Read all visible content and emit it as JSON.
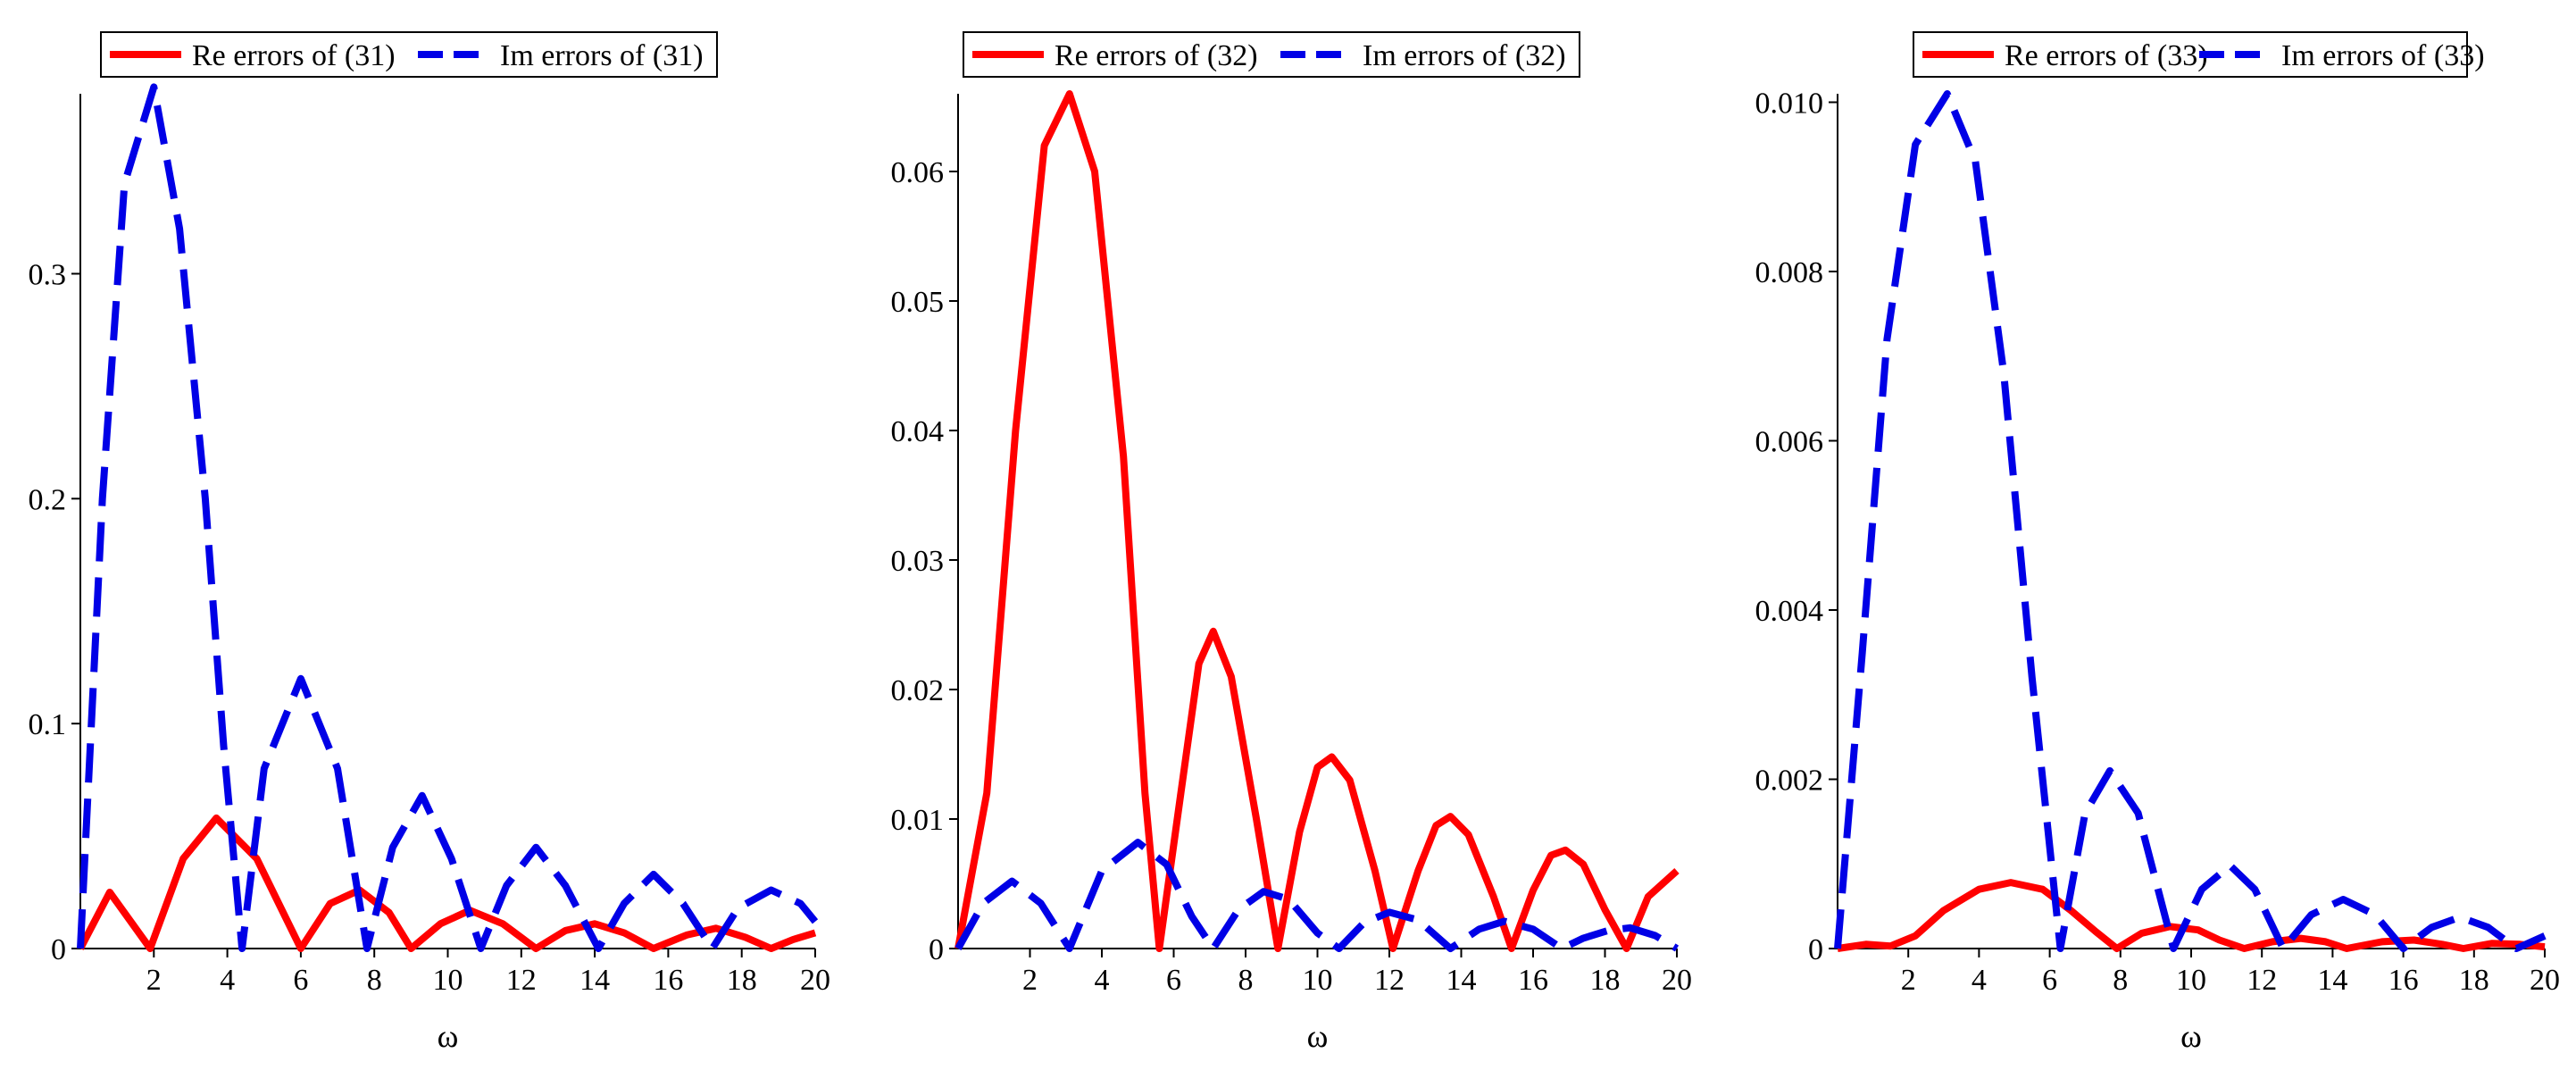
{
  "colors": {
    "re": "#ff0000",
    "im": "#0000e6",
    "axis": "#000000"
  },
  "chart_data": [
    {
      "type": "line",
      "title": "",
      "xlabel": "ω",
      "ylabel": "",
      "xlim": [
        0,
        20
      ],
      "ylim": [
        0,
        0.38
      ],
      "xticks": [
        2,
        4,
        6,
        8,
        10,
        12,
        14,
        16,
        18,
        20
      ],
      "xtick_labels": [
        "2",
        "4",
        "6",
        "8",
        "10",
        "12",
        "14",
        "16",
        "18",
        "20"
      ],
      "yticks": [
        0,
        0.1,
        0.2,
        0.3
      ],
      "ytick_labels": [
        "0",
        "0.1",
        "0.2",
        "0.3"
      ],
      "legend": [
        "Re errors of (31)",
        "Im errors of (31)"
      ],
      "legend_position": "top-center",
      "series": [
        {
          "name": "Re errors of (31)",
          "style": "solid",
          "x": [
            0,
            0.8,
            1.9,
            2.8,
            3.7,
            4.8,
            6.0,
            6.8,
            7.6,
            8.4,
            9.0,
            9.8,
            10.6,
            11.5,
            12.4,
            13.2,
            14.0,
            14.8,
            15.6,
            16.5,
            17.3,
            18.1,
            18.8,
            19.4,
            20.0
          ],
          "y": [
            0,
            0.025,
            0,
            0.04,
            0.058,
            0.04,
            0,
            0.02,
            0.026,
            0.016,
            0,
            0.011,
            0.017,
            0.011,
            0,
            0.008,
            0.011,
            0.007,
            0,
            0.006,
            0.009,
            0.005,
            0,
            0.004,
            0.007
          ]
        },
        {
          "name": "Im errors of (31)",
          "style": "dashed",
          "x": [
            0,
            0.6,
            1.2,
            2.0,
            2.7,
            3.4,
            3.9,
            4.4,
            5.0,
            6.0,
            7.0,
            7.8,
            8.5,
            9.3,
            10.1,
            10.9,
            11.6,
            12.4,
            13.2,
            14.1,
            14.8,
            15.6,
            16.4,
            17.2,
            17.9,
            18.8,
            19.6,
            20.0
          ],
          "y": [
            0,
            0.2,
            0.34,
            0.383,
            0.32,
            0.2,
            0.09,
            0,
            0.08,
            0.12,
            0.08,
            0,
            0.045,
            0.068,
            0.04,
            0,
            0.028,
            0.045,
            0.028,
            0,
            0.02,
            0.033,
            0.02,
            0,
            0.018,
            0.026,
            0.02,
            0.012
          ]
        }
      ]
    },
    {
      "type": "line",
      "title": "",
      "xlabel": "ω",
      "ylabel": "",
      "xlim": [
        0,
        20
      ],
      "ylim": [
        0,
        0.066
      ],
      "xticks": [
        2,
        4,
        6,
        8,
        10,
        12,
        14,
        16,
        18,
        20
      ],
      "xtick_labels": [
        "2",
        "4",
        "6",
        "8",
        "10",
        "12",
        "14",
        "16",
        "18",
        "20"
      ],
      "yticks": [
        0,
        0.01,
        0.02,
        0.03,
        0.04,
        0.05,
        0.06
      ],
      "ytick_labels": [
        "0",
        "0.01",
        "0.02",
        "0.03",
        "0.04",
        "0.05",
        "0.06"
      ],
      "legend": [
        "Re errors of (32)",
        "Im errors of (32)"
      ],
      "legend_position": "top-center",
      "series": [
        {
          "name": "Re errors of (32)",
          "style": "solid",
          "x": [
            0,
            0.8,
            1.6,
            2.4,
            3.1,
            3.8,
            4.6,
            5.2,
            5.6,
            6.2,
            6.7,
            7.1,
            7.6,
            8.3,
            8.9,
            9.5,
            10.0,
            10.4,
            10.9,
            11.6,
            12.1,
            12.8,
            13.3,
            13.7,
            14.2,
            14.9,
            15.4,
            16.0,
            16.5,
            16.9,
            17.4,
            18.0,
            18.6,
            19.2,
            20.0
          ],
          "y": [
            0,
            0.012,
            0.04,
            0.062,
            0.066,
            0.06,
            0.038,
            0.012,
            0,
            0.012,
            0.022,
            0.0245,
            0.021,
            0.01,
            0,
            0.009,
            0.014,
            0.0148,
            0.013,
            0.006,
            0,
            0.006,
            0.0095,
            0.0102,
            0.0088,
            0.004,
            0,
            0.0045,
            0.0072,
            0.0076,
            0.0065,
            0.003,
            0,
            0.004,
            0.006
          ]
        },
        {
          "name": "Im errors of (32)",
          "style": "dashed",
          "x": [
            0,
            0.7,
            1.5,
            2.3,
            3.1,
            4.0,
            5.0,
            5.8,
            6.5,
            7.1,
            7.8,
            8.5,
            9.2,
            10.0,
            10.6,
            11.3,
            12.0,
            12.8,
            13.7,
            14.5,
            15.2,
            16.0,
            16.8,
            17.4,
            18.1,
            18.7,
            19.4,
            20.0
          ],
          "y": [
            0,
            0.0035,
            0.0052,
            0.0035,
            0,
            0.006,
            0.0082,
            0.0065,
            0.0025,
            0,
            0.003,
            0.0044,
            0.0038,
            0.0012,
            0,
            0.002,
            0.0028,
            0.0022,
            0,
            0.0015,
            0.0021,
            0.0015,
            0,
            0.0008,
            0.0014,
            0.0016,
            0.001,
            0
          ]
        }
      ]
    },
    {
      "type": "line",
      "title": "",
      "xlabel": "ω",
      "ylabel": "",
      "xlim": [
        0,
        20
      ],
      "ylim": [
        0,
        0.0101
      ],
      "xticks": [
        2,
        4,
        6,
        8,
        10,
        12,
        14,
        16,
        18,
        20
      ],
      "xtick_labels": [
        "2",
        "4",
        "6",
        "8",
        "10",
        "12",
        "14",
        "16",
        "18",
        "20"
      ],
      "yticks": [
        0,
        0.002,
        0.004,
        0.006,
        0.008,
        0.01
      ],
      "ytick_labels": [
        "0",
        "0.002",
        "0.004",
        "0.006",
        "0.008",
        "0.010"
      ],
      "legend": [
        "Re errors of (33)",
        "Im errors of (33)"
      ],
      "legend_position": "top-center",
      "series": [
        {
          "name": "Re errors of (33)",
          "style": "solid",
          "x": [
            0,
            0.8,
            1.5,
            2.2,
            3.0,
            4.0,
            4.9,
            5.8,
            6.6,
            7.3,
            7.9,
            8.6,
            9.4,
            10.2,
            10.8,
            11.5,
            12.3,
            13.1,
            13.8,
            14.4,
            15.4,
            16.3,
            17.1,
            17.7,
            18.5,
            19.3,
            20.0
          ],
          "y": [
            0,
            5e-05,
            3e-05,
            0.00015,
            0.00045,
            0.0007,
            0.00078,
            0.0007,
            0.00045,
            0.0002,
            0,
            0.00018,
            0.00026,
            0.00022,
            0.0001,
            0,
            8e-05,
            0.00012,
            8e-05,
            0,
            8e-05,
            0.0001,
            5e-05,
            0,
            6e-05,
            5e-05,
            2e-05
          ]
        },
        {
          "name": "Im errors of (33)",
          "style": "dashed",
          "x": [
            0,
            0.7,
            1.4,
            2.2,
            3.1,
            3.9,
            4.7,
            5.5,
            6.3,
            7.0,
            7.7,
            8.5,
            9.5,
            10.3,
            11.1,
            11.8,
            12.6,
            13.4,
            14.3,
            15.2,
            16.0,
            16.8,
            17.6,
            18.4,
            19.2,
            20.0
          ],
          "y": [
            0,
            0.0035,
            0.0072,
            0.0095,
            0.0101,
            0.0093,
            0.0068,
            0.0032,
            0,
            0.0016,
            0.0021,
            0.0016,
            0,
            0.0007,
            0.00098,
            0.0007,
            0,
            0.0004,
            0.00058,
            0.0004,
            0,
            0.00025,
            0.00037,
            0.00025,
            0,
            0.00015
          ]
        }
      ]
    }
  ]
}
